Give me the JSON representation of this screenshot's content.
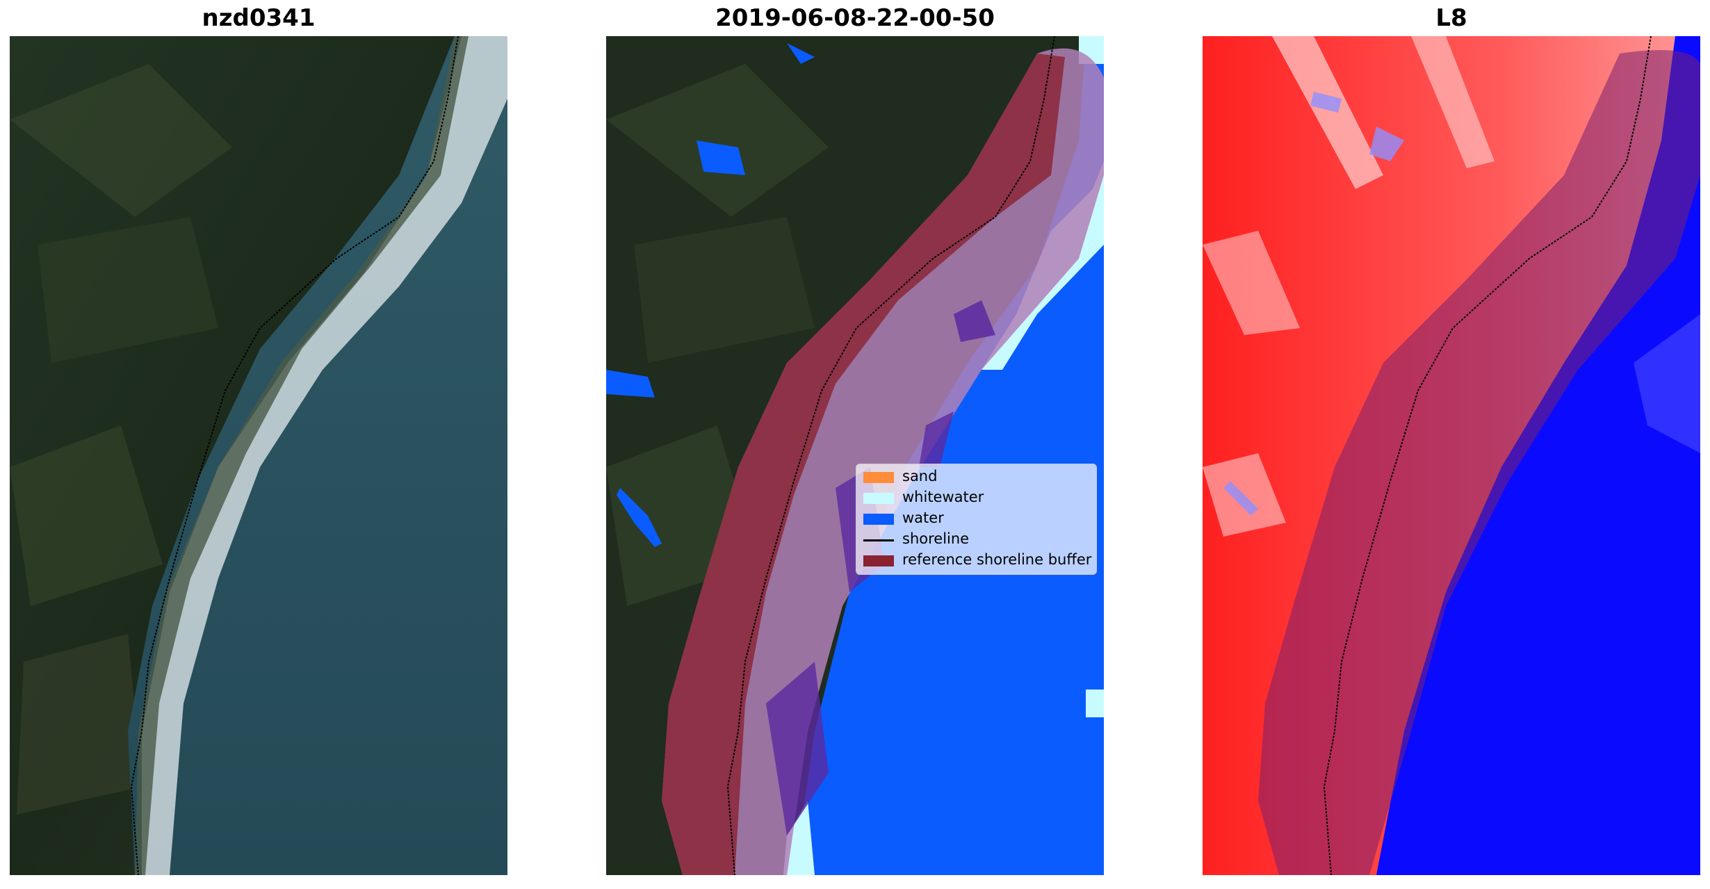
{
  "panels": [
    {
      "title": "nzd0341"
    },
    {
      "title": "2019-06-08-22-00-50"
    },
    {
      "title": "L8"
    }
  ],
  "legend": {
    "placement": "center-right",
    "items": [
      {
        "label": "sand",
        "color": "#ff8c3a",
        "kind": "patch"
      },
      {
        "label": "whitewater",
        "color": "#c8fbff",
        "kind": "patch"
      },
      {
        "label": "water",
        "color": "#0a5cff",
        "kind": "patch"
      },
      {
        "label": "shoreline",
        "color": "#000000",
        "kind": "line"
      },
      {
        "label": "reference shoreline buffer",
        "color": "#8b2232",
        "kind": "patch"
      }
    ]
  },
  "colors": {
    "land_dark": "#1e2a1c",
    "ocean": "#2a4e5e",
    "surf": "#e8eef0",
    "water_class": "#0a5cff",
    "whitewater_class": "#c8fbff",
    "buffer": "#8b2232",
    "buffer_overlay": "#b080b8",
    "index_red": "#ff0000",
    "index_blue": "#0000ff"
  }
}
